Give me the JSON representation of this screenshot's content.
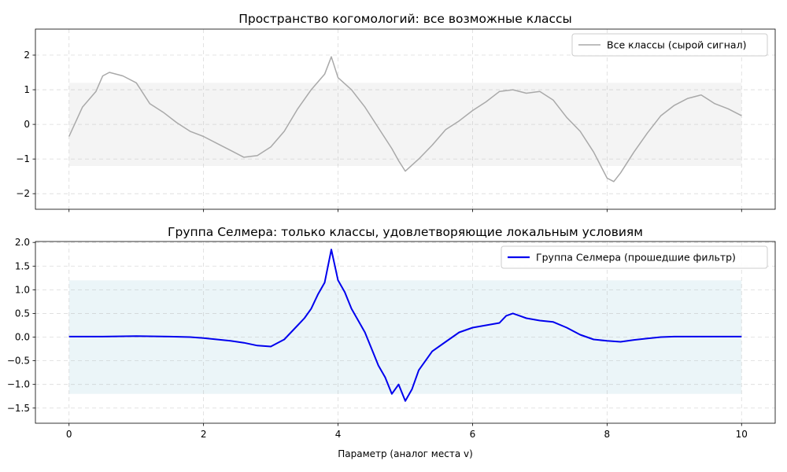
{
  "chart_data": [
    {
      "type": "line",
      "title": "Пространство когомологий: все возможные классы",
      "xlabel": "",
      "ylabel": "",
      "xlim": [
        -0.5,
        10.5
      ],
      "ylim": [
        -2.45,
        2.75
      ],
      "x_ticks": [
        0,
        2,
        4,
        6,
        8,
        10
      ],
      "x_tick_labels": [
        "",
        "",
        "",
        "",
        "",
        ""
      ],
      "y_ticks": [
        -2,
        -1,
        0,
        1,
        2
      ],
      "y_tick_labels": [
        "−2",
        "−1",
        "0",
        "1",
        "2"
      ],
      "grid": true,
      "legend_position": "top-right",
      "band": {
        "x": [
          0,
          10
        ],
        "y": [
          -1.2,
          1.2
        ],
        "color": "#f4f4f4"
      },
      "series": [
        {
          "name": "Все классы (сырой сигнал)",
          "color": "#a9a9a9",
          "x": [
            0,
            0.2,
            0.4,
            0.5,
            0.6,
            0.8,
            1.0,
            1.2,
            1.4,
            1.6,
            1.8,
            2.0,
            2.2,
            2.4,
            2.6,
            2.8,
            3.0,
            3.2,
            3.4,
            3.6,
            3.8,
            3.9,
            4.0,
            4.2,
            4.4,
            4.6,
            4.8,
            4.9,
            5.0,
            5.2,
            5.4,
            5.6,
            5.8,
            6.0,
            6.2,
            6.4,
            6.6,
            6.8,
            7.0,
            7.2,
            7.4,
            7.6,
            7.8,
            8.0,
            8.1,
            8.2,
            8.4,
            8.6,
            8.8,
            9.0,
            9.2,
            9.4,
            9.6,
            9.8,
            10.0
          ],
          "y": [
            -0.35,
            0.5,
            0.95,
            1.4,
            1.5,
            1.4,
            1.2,
            0.6,
            0.35,
            0.05,
            -0.2,
            -0.35,
            -0.55,
            -0.75,
            -0.95,
            -0.9,
            -0.65,
            -0.2,
            0.45,
            1.0,
            1.45,
            1.95,
            1.35,
            1.0,
            0.5,
            -0.1,
            -0.7,
            -1.05,
            -1.35,
            -1.0,
            -0.6,
            -0.15,
            0.1,
            0.4,
            0.65,
            0.95,
            1.0,
            0.9,
            0.95,
            0.7,
            0.2,
            -0.2,
            -0.8,
            -1.55,
            -1.65,
            -1.4,
            -0.8,
            -0.25,
            0.25,
            0.55,
            0.75,
            0.85,
            0.6,
            0.45,
            0.25
          ]
        }
      ]
    },
    {
      "type": "line",
      "title": "Группа Селмера: только классы, удовлетворяющие локальным условиям",
      "xlabel": "Параметр (аналог места v)",
      "ylabel": "",
      "xlim": [
        -0.5,
        10.5
      ],
      "ylim": [
        -1.82,
        2.02
      ],
      "x_ticks": [
        0,
        2,
        4,
        6,
        8,
        10
      ],
      "x_tick_labels": [
        "0",
        "2",
        "4",
        "6",
        "8",
        "10"
      ],
      "y_ticks": [
        -1.5,
        -1.0,
        -0.5,
        0.0,
        0.5,
        1.0,
        1.5,
        2.0
      ],
      "y_tick_labels": [
        "−1.5",
        "−1.0",
        "−0.5",
        "0.0",
        "0.5",
        "1.0",
        "1.5",
        "2.0"
      ],
      "grid": true,
      "legend_position": "top-right",
      "band": {
        "x": [
          0,
          10
        ],
        "y": [
          -1.2,
          1.2
        ],
        "color": "#ebf5f8"
      },
      "series": [
        {
          "name": "Группа Селмера (прошедшие фильтр)",
          "color": "#0000ee",
          "x": [
            0,
            0.5,
            1.0,
            1.5,
            1.8,
            2.0,
            2.2,
            2.4,
            2.6,
            2.8,
            3.0,
            3.2,
            3.4,
            3.5,
            3.6,
            3.7,
            3.8,
            3.9,
            4.0,
            4.1,
            4.2,
            4.3,
            4.4,
            4.5,
            4.6,
            4.7,
            4.8,
            4.9,
            5.0,
            5.1,
            5.2,
            5.4,
            5.6,
            5.8,
            6.0,
            6.2,
            6.4,
            6.5,
            6.6,
            6.7,
            6.8,
            7.0,
            7.2,
            7.4,
            7.6,
            7.8,
            8.0,
            8.2,
            8.4,
            8.6,
            8.8,
            9.0,
            9.5,
            10.0
          ],
          "y": [
            0.01,
            0.01,
            0.02,
            0.01,
            0.0,
            -0.02,
            -0.05,
            -0.08,
            -0.12,
            -0.18,
            -0.2,
            -0.05,
            0.25,
            0.4,
            0.6,
            0.9,
            1.15,
            1.85,
            1.2,
            0.95,
            0.6,
            0.35,
            0.1,
            -0.25,
            -0.6,
            -0.85,
            -1.2,
            -1.0,
            -1.35,
            -1.1,
            -0.7,
            -0.3,
            -0.1,
            0.1,
            0.2,
            0.25,
            0.3,
            0.45,
            0.5,
            0.45,
            0.4,
            0.35,
            0.32,
            0.2,
            0.05,
            -0.05,
            -0.08,
            -0.1,
            -0.06,
            -0.03,
            0.0,
            0.01,
            0.01,
            0.01
          ]
        }
      ]
    }
  ]
}
